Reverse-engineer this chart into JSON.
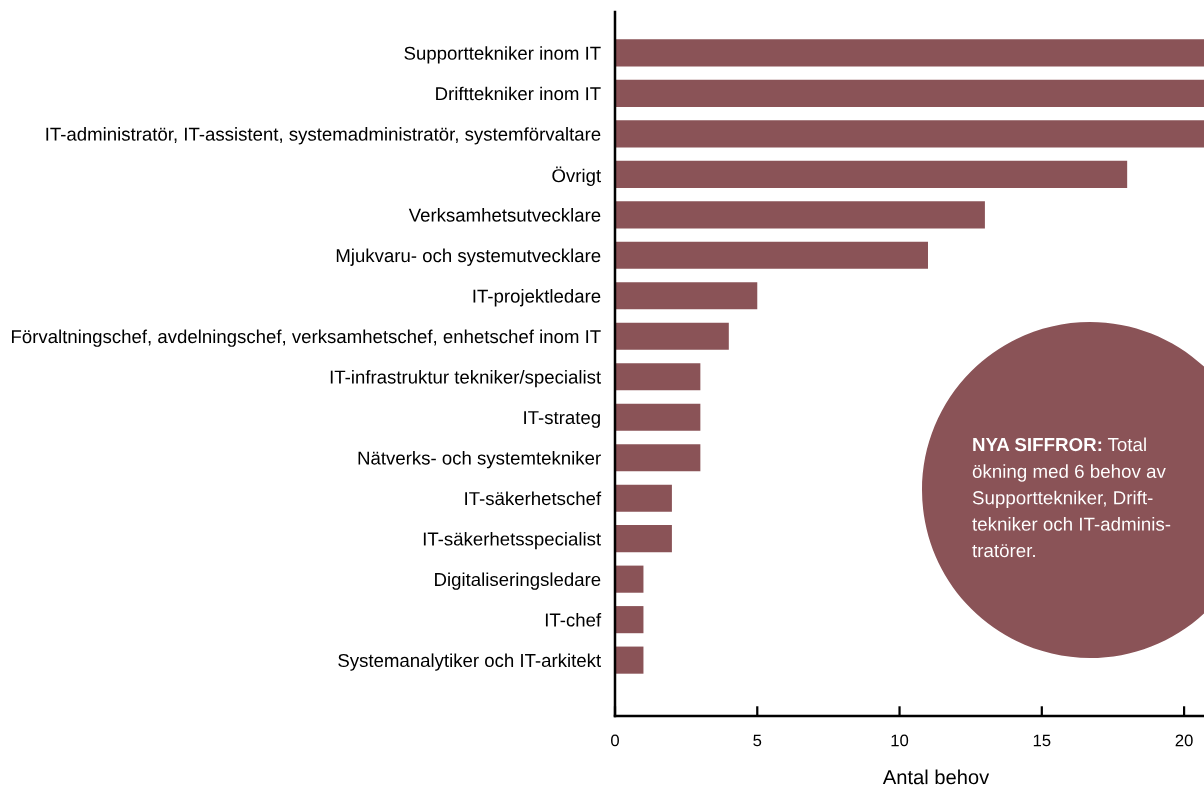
{
  "chart_data": {
    "type": "bar",
    "orientation": "horizontal",
    "xlabel": "Antal behov",
    "categories": [
      "Supporttekniker inom IT",
      "Drifttekniker inom IT",
      "IT-administratör, IT-assistent, systemadministratör, systemförvaltare",
      "Övrigt",
      "Verksamhetsutvecklare",
      "Mjukvaru- och systemutvecklare",
      "IT-projektledare",
      "Förvaltningschef, avdelningschef, verksamhetschef, enhetschef inom IT",
      "IT-infrastruktur tekniker/specialist",
      "IT-strateg",
      "Nätverks- och systemtekniker",
      "IT-säkerhetschef",
      "IT-säkerhetsspecialist",
      "Digitaliseringsledare",
      "IT-chef",
      "Systemanalytiker och IT-arkitekt"
    ],
    "values": [
      20.7,
      20.7,
      20.7,
      18,
      13,
      11,
      5,
      4,
      3,
      3,
      3,
      2,
      2,
      1,
      1,
      1
    ],
    "color": "#8a5357",
    "xlim": [
      0,
      20.7
    ],
    "xticks": [
      0,
      5,
      10,
      15,
      20
    ],
    "annotations": [
      "NYA SIFFROR: Total\nökning med 6 behov av\nSupporttekniker, Drift-\ntekniker och IT-adminis-\ntratörer."
    ]
  }
}
